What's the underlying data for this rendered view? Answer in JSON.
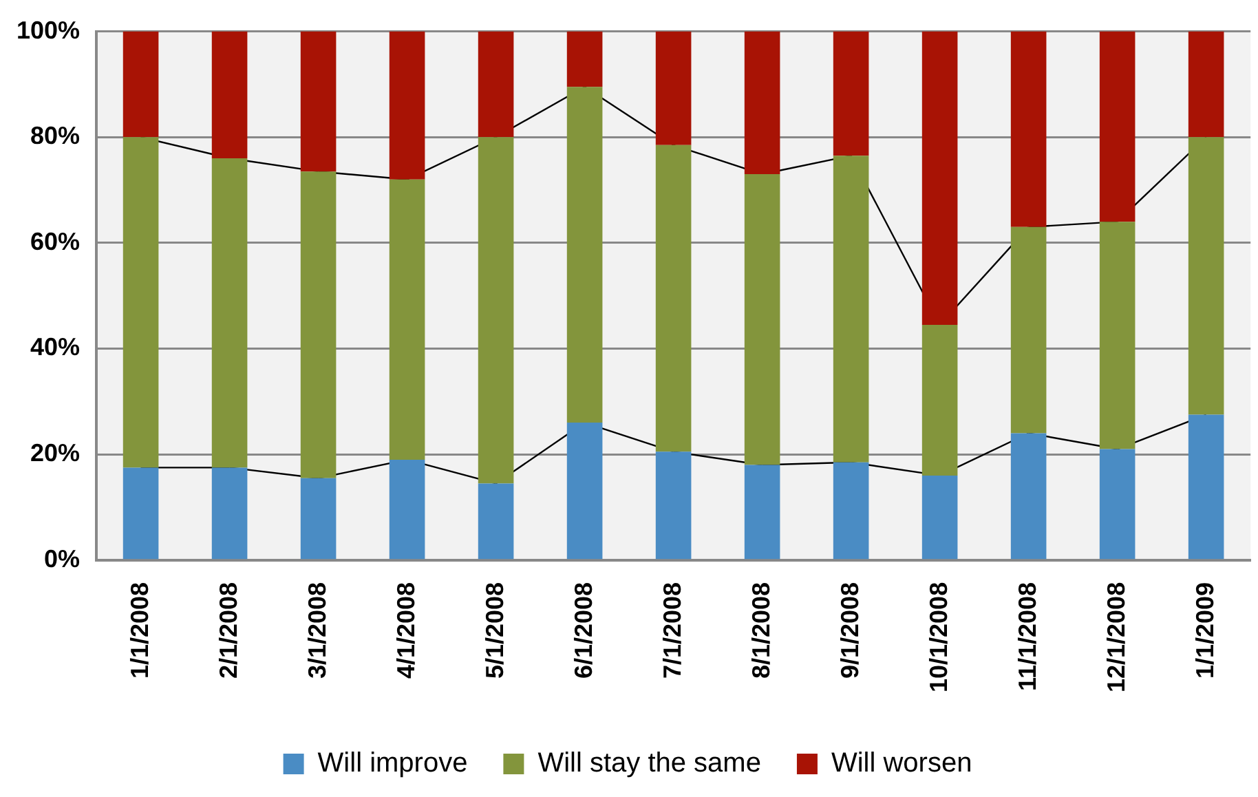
{
  "chart_data": {
    "type": "bar",
    "stacked": true,
    "categories": [
      "1/1/2008",
      "2/1/2008",
      "3/1/2008",
      "4/1/2008",
      "5/1/2008",
      "6/1/2008",
      "7/1/2008",
      "8/1/2008",
      "9/1/2008",
      "10/1/2008",
      "11/1/2008",
      "12/1/2008",
      "1/1/2009"
    ],
    "series": [
      {
        "name": "Will improve",
        "color": "#4a8cc4",
        "values": [
          17.5,
          17.5,
          15.5,
          19,
          14.5,
          26,
          20.5,
          18,
          18.5,
          16,
          24,
          21,
          27.5
        ]
      },
      {
        "name": "Will stay the same",
        "color": "#83953c",
        "values": [
          62.5,
          58.5,
          58,
          53,
          65.5,
          63.5,
          58,
          55,
          58,
          28.5,
          39,
          43,
          52.5
        ]
      },
      {
        "name": "Will worsen",
        "color": "#a81305",
        "values": [
          20,
          24,
          26.5,
          28,
          20,
          10.5,
          21.5,
          27,
          23.5,
          55.5,
          37,
          36,
          20
        ]
      }
    ],
    "ylim": [
      0,
      100
    ],
    "yticks": [
      {
        "value": 0,
        "label": "0%"
      },
      {
        "value": 20,
        "label": "20%"
      },
      {
        "value": 40,
        "label": "40%"
      },
      {
        "value": 60,
        "label": "60%"
      },
      {
        "value": 80,
        "label": "80%"
      },
      {
        "value": 100,
        "label": "100%"
      }
    ],
    "grid": "y",
    "legend": "bottom"
  }
}
